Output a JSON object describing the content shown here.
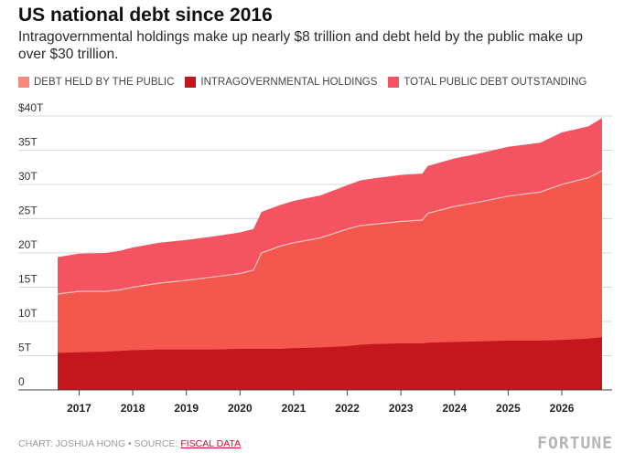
{
  "chart_data": {
    "type": "area",
    "title": "US national debt since 2016",
    "subtitle": "Intragovernmental holdings make up nearly $8 trillion and debt held by the public make up over $30 trillion.",
    "x_ticks": [
      "2017",
      "2018",
      "2019",
      "2020",
      "2021",
      "2022",
      "2023",
      "2024",
      "2025",
      "2026"
    ],
    "y_ticks": [
      "$40T",
      "35T",
      "30T",
      "25T",
      "20T",
      "15T",
      "10T",
      "5T",
      "0"
    ],
    "ylim": [
      0,
      40
    ],
    "xlim": [
      2016.6,
      2026.75
    ],
    "grid": true,
    "legend_position": "top-left",
    "x": [
      2016.6,
      2017.0,
      2017.5,
      2017.75,
      2018.0,
      2018.5,
      2019.0,
      2019.5,
      2020.0,
      2020.25,
      2020.4,
      2020.75,
      2021.0,
      2021.5,
      2022.0,
      2022.25,
      2022.5,
      2023.0,
      2023.4,
      2023.5,
      2024.0,
      2024.5,
      2025.0,
      2025.5,
      2025.6,
      2026.0,
      2026.5,
      2026.75
    ],
    "series": [
      {
        "name": "DEBT HELD BY THE PUBLIC",
        "color": "#f4574e",
        "values": [
          14.0,
          14.4,
          14.4,
          14.6,
          15.0,
          15.6,
          16.0,
          16.5,
          17.0,
          17.5,
          20.0,
          21.0,
          21.5,
          22.2,
          23.5,
          24.0,
          24.2,
          24.6,
          24.8,
          25.8,
          26.8,
          27.5,
          28.3,
          28.8,
          28.9,
          30.0,
          31.0,
          32.0
        ]
      },
      {
        "name": "INTRAGOVERNMENTAL HOLDINGS",
        "color": "#c4161c",
        "values": [
          5.4,
          5.5,
          5.6,
          5.7,
          5.8,
          5.9,
          5.9,
          5.9,
          6.0,
          6.0,
          6.0,
          6.0,
          6.1,
          6.2,
          6.4,
          6.6,
          6.7,
          6.8,
          6.8,
          6.9,
          7.0,
          7.1,
          7.2,
          7.2,
          7.2,
          7.3,
          7.5,
          7.7
        ]
      },
      {
        "name": "TOTAL PUBLIC DEBT OUTSTANDING",
        "color": "#f45361",
        "values": [
          19.4,
          19.9,
          20.0,
          20.3,
          20.8,
          21.5,
          21.9,
          22.4,
          23.0,
          23.5,
          26.0,
          27.0,
          27.6,
          28.4,
          29.9,
          30.6,
          30.9,
          31.4,
          31.6,
          32.7,
          33.8,
          34.6,
          35.5,
          36.0,
          36.1,
          37.6,
          38.5,
          39.7
        ]
      }
    ]
  },
  "source": {
    "credit": "CHART: JOSHUA HONG • SOURCE: ",
    "link": "FISCAL DATA"
  },
  "brand": "FORTUNE",
  "colors": {
    "public": "#f4574e",
    "intragov": "#c4161c",
    "total": "#f45361",
    "legend_public": "#f48a7a",
    "grid": "#d8d8d8",
    "accent_link": "#c8102e"
  }
}
